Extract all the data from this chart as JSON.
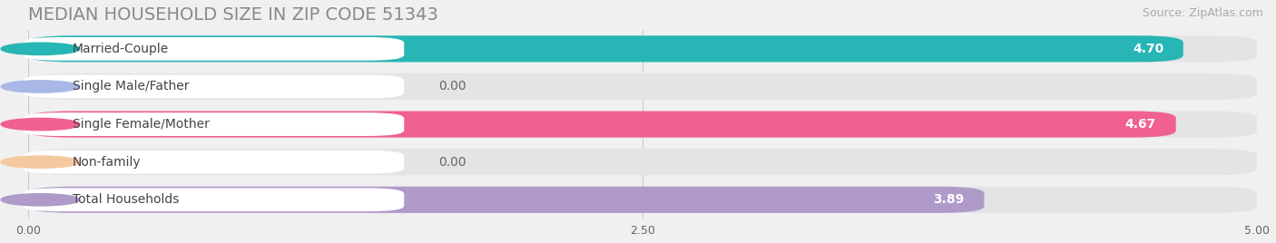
{
  "title": "MEDIAN HOUSEHOLD SIZE IN ZIP CODE 51343",
  "source": "Source: ZipAtlas.com",
  "categories": [
    "Married-Couple",
    "Single Male/Father",
    "Single Female/Mother",
    "Non-family",
    "Total Households"
  ],
  "values": [
    4.7,
    0.0,
    4.67,
    0.0,
    3.89
  ],
  "bar_colors": [
    "#28b5b5",
    "#aab8e8",
    "#f06090",
    "#f5c8a0",
    "#b09aca"
  ],
  "value_labels": [
    "4.70",
    "0.00",
    "4.67",
    "0.00",
    "3.89"
  ],
  "xlim": [
    0,
    5.0
  ],
  "xticks": [
    0.0,
    2.5,
    5.0
  ],
  "xtick_labels": [
    "0.00",
    "2.50",
    "5.00"
  ],
  "background_color": "#f0f0f0",
  "row_bg_color": "#e8e8e8",
  "title_fontsize": 14,
  "source_fontsize": 9,
  "label_fontsize": 10,
  "value_fontsize": 10
}
